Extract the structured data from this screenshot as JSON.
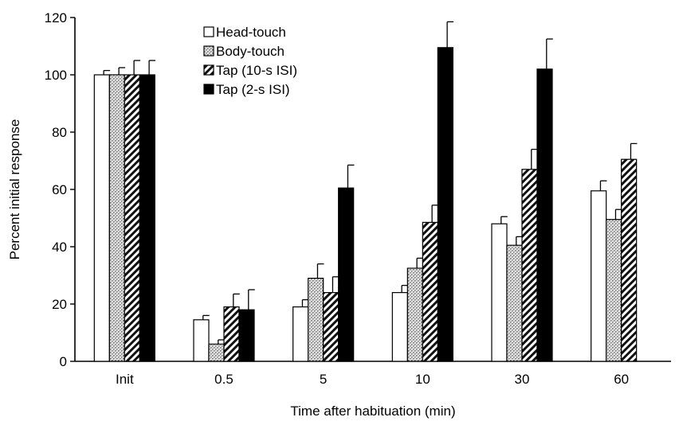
{
  "chart_data": {
    "type": "bar",
    "title": "",
    "xlabel": "Time after habituation (min)",
    "ylabel": "Percent initial response",
    "categories": [
      "Init",
      "0.5",
      "5",
      "10",
      "30",
      "60"
    ],
    "ylim": [
      0,
      120
    ],
    "yticks": [
      0,
      20,
      40,
      60,
      80,
      100,
      120
    ],
    "grid": false,
    "legend_position": "top-center",
    "series": [
      {
        "name": "Head-touch",
        "pattern": "white",
        "values": [
          100,
          14.5,
          19,
          24,
          48,
          59.5
        ],
        "errors": [
          1.5,
          1.5,
          2.5,
          2.5,
          2.5,
          3.5
        ]
      },
      {
        "name": "Body-touch",
        "pattern": "stipple",
        "values": [
          100,
          6,
          29,
          32.5,
          40.5,
          49.5
        ],
        "errors": [
          2.5,
          1.5,
          5,
          3.5,
          3,
          3.5
        ]
      },
      {
        "name": "Tap (10-s ISI)",
        "pattern": "hatch",
        "values": [
          100,
          19,
          24,
          48.5,
          67,
          70.5
        ],
        "errors": [
          5,
          4.5,
          5.5,
          6,
          7,
          5.5
        ]
      },
      {
        "name": "Tap (2-s ISI)",
        "pattern": "black",
        "values": [
          100,
          18,
          60.5,
          109.5,
          102,
          null
        ],
        "errors": [
          5,
          7,
          8,
          9,
          10.5,
          null
        ]
      }
    ]
  }
}
